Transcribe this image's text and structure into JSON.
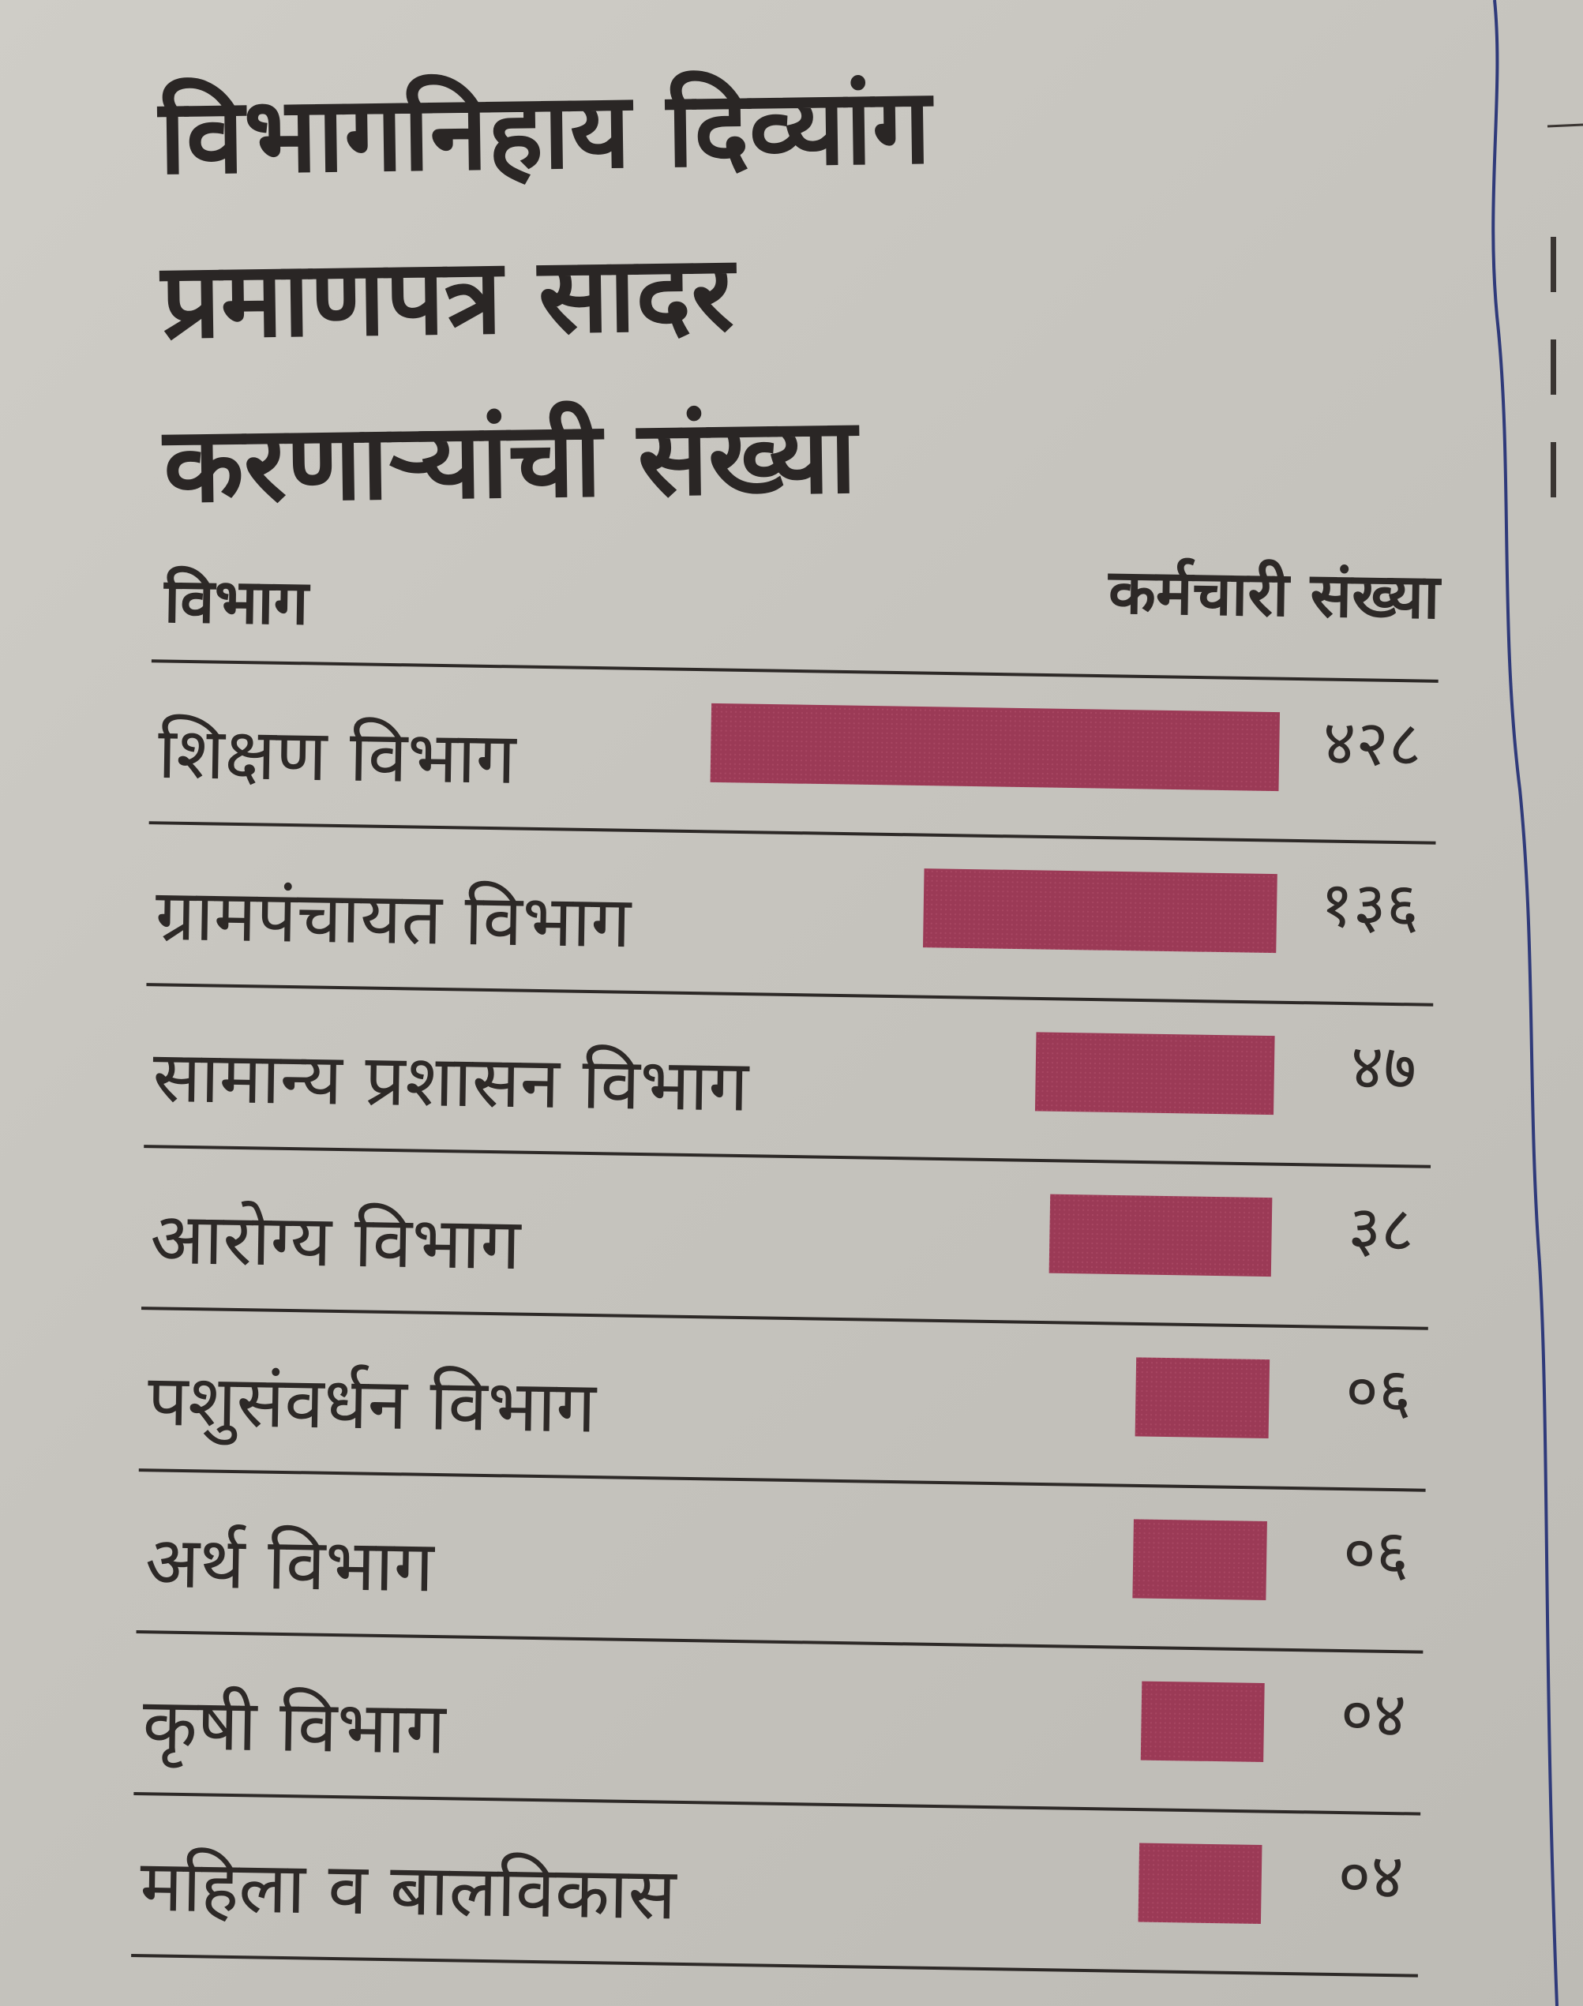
{
  "chart_data": {
    "type": "bar",
    "title": "विभागनिहाय दिव्यांग प्रमाणपत्र सादर करणाऱ्यांची संख्या",
    "column_headers": {
      "category": "विभाग",
      "value": "कर्मचारी संख्या"
    },
    "categories": [
      "शिक्षण विभाग",
      "ग्रामपंचायत विभाग",
      "सामान्य प्रशासन विभाग",
      "आरोग्य विभाग",
      "पशुसंवर्धन विभाग",
      "अर्थ विभाग",
      "कृषी विभाग",
      "महिला व बालविकास"
    ],
    "values": [
      428,
      136,
      47,
      38,
      6,
      6,
      4,
      4
    ],
    "value_labels": [
      "४२८",
      "१३६",
      "४७",
      "३८",
      "०६",
      "०६",
      "०४",
      "०४"
    ],
    "bar_color": "#9b3a56",
    "orientation": "horizontal",
    "grid": false,
    "legend": "none"
  }
}
